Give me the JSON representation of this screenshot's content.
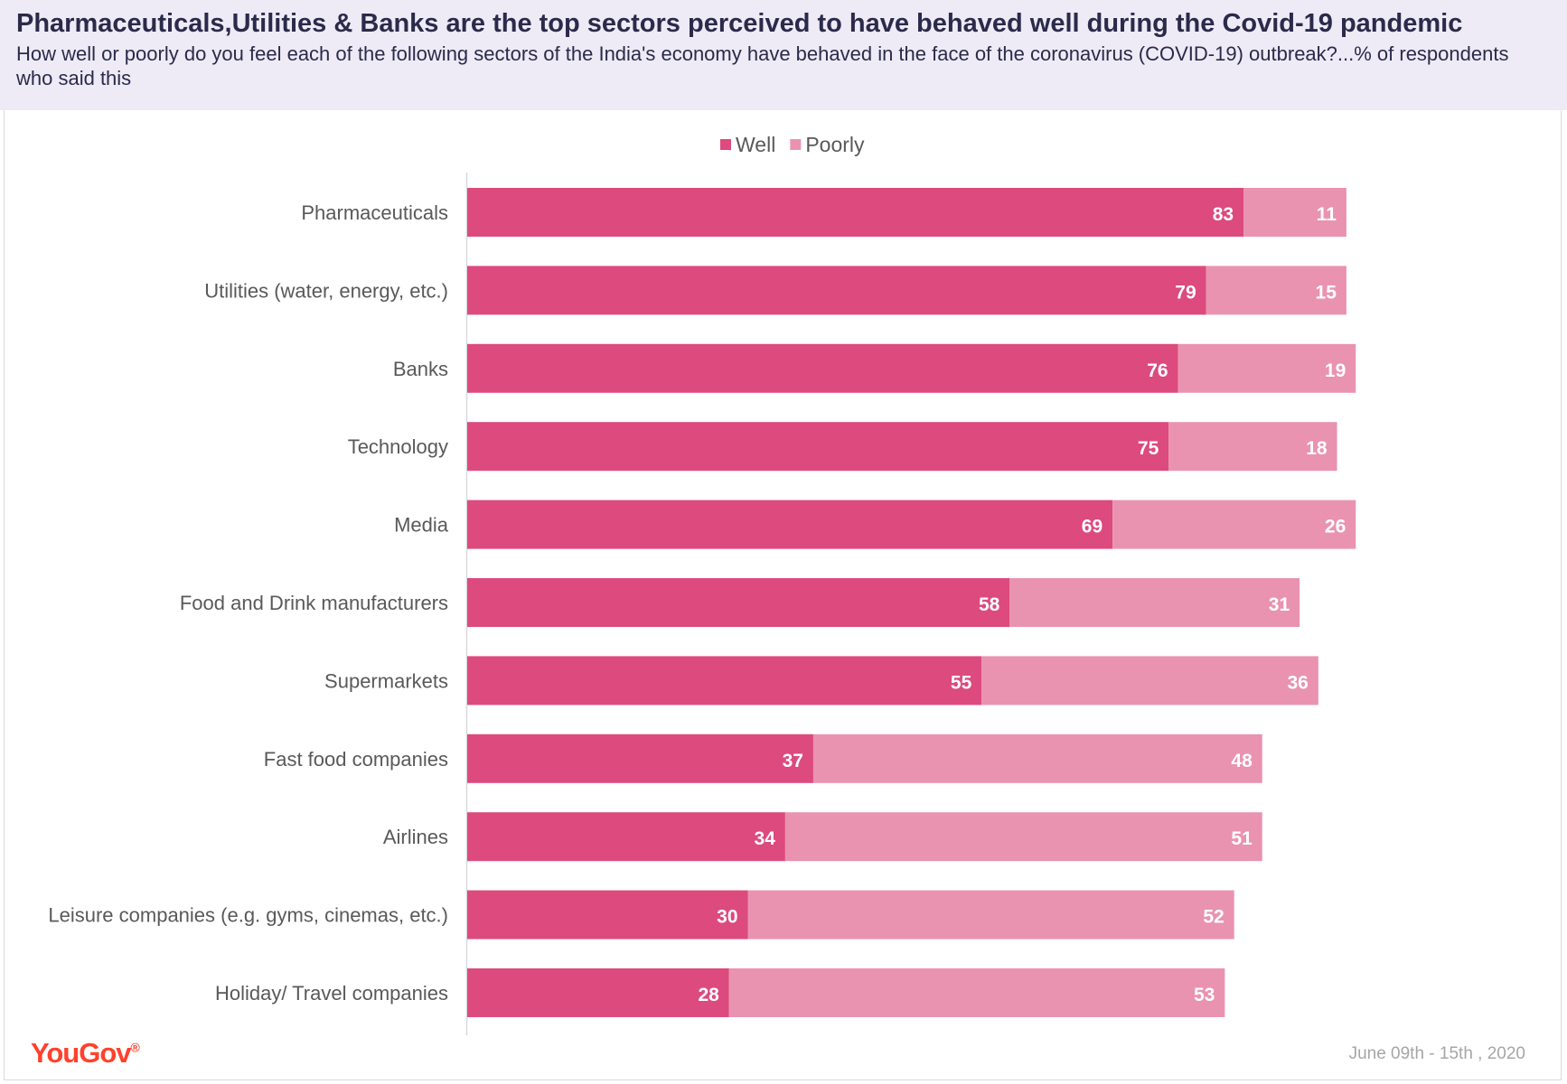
{
  "header": {
    "title": "Pharmaceuticals,Utilities  & Banks are the top sectors perceived  to have behaved well during the Covid-19 pandemic",
    "subtitle": "How well or poorly do you feel each of the following sectors of the India's economy have behaved in the face of the coronavirus (COVID-19) outbreak?...% of respondents who said this"
  },
  "footer": {
    "logo_text": "YouGov",
    "logo_mark": "®",
    "date": "June 09th - 15th , 2020"
  },
  "colors": {
    "well": "#dc4a7e",
    "poorly": "#e993b0",
    "label_text": "#595959",
    "value_text": "#ffffff",
    "axis": "#d9d9d9",
    "brand": "#ff412c"
  },
  "chart_data": {
    "type": "bar",
    "orientation": "horizontal",
    "stacked": true,
    "categories": [
      "Pharmaceuticals",
      "Utilities (water, energy, etc.)",
      "Banks",
      "Technology",
      "Media",
      "Food and Drink manufacturers",
      "Supermarkets",
      "Fast food companies",
      "Airlines",
      "Leisure companies (e.g. gyms, cinemas, etc.)",
      "Holiday/ Travel companies"
    ],
    "series": [
      {
        "name": "Well",
        "values": [
          83,
          79,
          76,
          75,
          69,
          58,
          55,
          37,
          34,
          30,
          28
        ]
      },
      {
        "name": "Poorly",
        "values": [
          11,
          15,
          19,
          18,
          26,
          31,
          36,
          48,
          51,
          52,
          53
        ]
      }
    ],
    "legend_position": "top-center",
    "data_labels": true,
    "xlim": [
      0,
      100
    ],
    "grid": false
  }
}
